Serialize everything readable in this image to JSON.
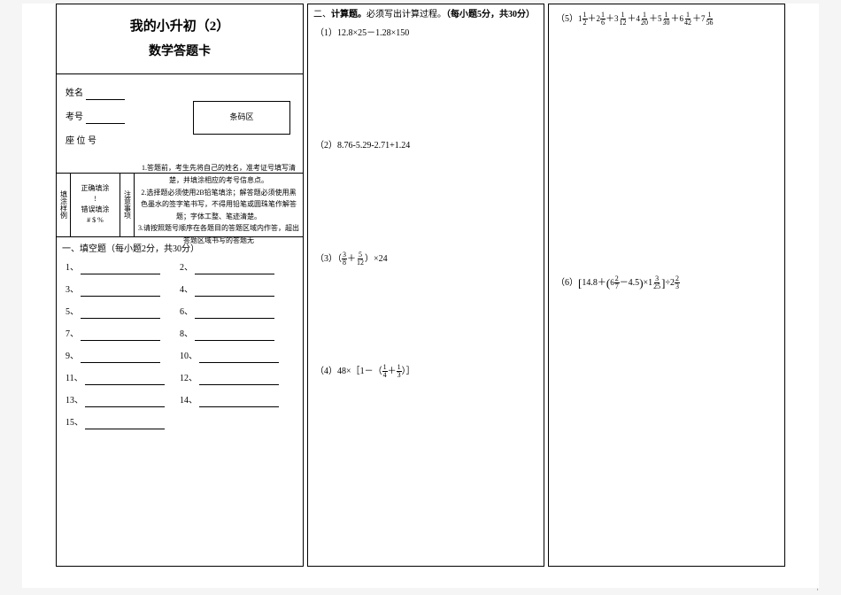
{
  "title": {
    "line1": "我的小升初（2）",
    "line2": "数学答题卡"
  },
  "info": {
    "name_label": "姓名",
    "examno_label": "考号",
    "seat_label": "座 位 号",
    "barcode_label": "条码区"
  },
  "notes": {
    "left_vert": "填涂样例",
    "fill_correct": "正确填涂",
    "fill_correct_mark": "!",
    "fill_wrong": "错误填涂",
    "fill_wrong_mark": "# $ %",
    "mid_vert": "注意事项",
    "n1": "1.答题前，考生先将自己的姓名，准考证号填写清楚，并填涂相应的考号信息点。",
    "n2": "2.选择题必须使用2B铅笔填涂；解答题必须使用黑色墨水的签字笔书写，不得用铅笔或圆珠笔作解答题；字体工整、笔迹清楚。",
    "n3": "3.请按照题号顺序在各题目的答题区域内作答，超出答题区域书写的答题无"
  },
  "section1": {
    "title": "一、填空题（每小题2分，共30分）",
    "rows": [
      [
        "1、",
        "2、"
      ],
      [
        "3、",
        "4、"
      ],
      [
        "5、",
        "6、"
      ],
      [
        "7、",
        "8、"
      ],
      [
        "9、",
        "10、"
      ],
      [
        "11、",
        "12、"
      ],
      [
        "13、",
        "14、"
      ],
      [
        "15、",
        ""
      ]
    ]
  },
  "section2": {
    "title": "二、计算题。必须写出计算过程。（每小题5分，共30分）",
    "p1": "（1）12.8×25－1.28×150",
    "p2": "（2）8.76-5.29-2.71+1.24",
    "p3_pre": "（3）（",
    "p3_mid": "＋",
    "p3_post": "）×24",
    "p3_f1": {
      "n": "3",
      "d": "8"
    },
    "p3_f2": {
      "n": "5",
      "d": "12"
    },
    "p4_pre": "（4）48×［1－（",
    "p4_mid": "＋",
    "p4_post": "）］",
    "p4_f1": {
      "n": "1",
      "d": "4"
    },
    "p4_f2": {
      "n": "1",
      "d": "3"
    }
  },
  "section3": {
    "p5_pre": "（5）",
    "p5_terms": [
      {
        "w": "1",
        "n": "1",
        "d": "2"
      },
      {
        "w": "2",
        "n": "1",
        "d": "6"
      },
      {
        "w": "3",
        "n": "1",
        "d": "12"
      },
      {
        "w": "4",
        "n": "1",
        "d": "20"
      },
      {
        "w": "5",
        "n": "1",
        "d": "30"
      },
      {
        "w": "6",
        "n": "1",
        "d": "42"
      },
      {
        "w": "7",
        "n": "1",
        "d": "56"
      }
    ],
    "plus": "＋",
    "p6_pre": "（6）",
    "p6_a": "14.8＋",
    "p6_b": {
      "w": "6",
      "n": "2",
      "d": "7"
    },
    "p6_c": "－4.5",
    "p6_d": "×1",
    "p6_e": {
      "n": "3",
      "d": "25"
    },
    "p6_f": "÷2",
    "p6_g": {
      "n": "2",
      "d": "3"
    }
  },
  "colors": {
    "bg": "#f5f5f5",
    "paper": "#ffffff",
    "ink": "#000000"
  },
  "typography": {
    "title_fontsize_pt": 15,
    "body_fontsize_pt": 10,
    "small_fontsize_pt": 8
  }
}
